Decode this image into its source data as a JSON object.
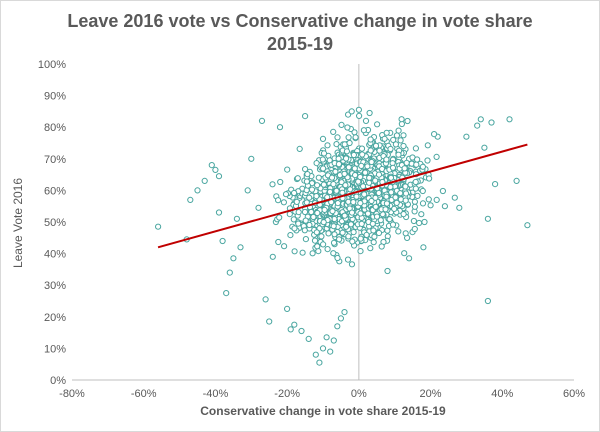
{
  "chart_data": {
    "type": "scatter",
    "title_line1": "Leave 2016 vote vs Conservative change in vote share",
    "title_line2": "2015-19",
    "xlabel": "Conservative change in vote share 2015-19",
    "ylabel": "Leave  Vote 2016",
    "xlim": [
      -0.8,
      0.6
    ],
    "ylim": [
      0,
      1.0
    ],
    "x_ticks": [
      -0.8,
      -0.6,
      -0.4,
      -0.2,
      0,
      0.2,
      0.4,
      0.6
    ],
    "x_tick_labels": [
      "-80%",
      "-60%",
      "-40%",
      "-20%",
      "0%",
      "20%",
      "40%",
      "60%"
    ],
    "y_ticks": [
      0,
      0.1,
      0.2,
      0.3,
      0.4,
      0.5,
      0.6,
      0.7,
      0.8,
      0.9,
      1.0
    ],
    "y_tick_labels": [
      "0%",
      "10%",
      "20%",
      "30%",
      "40%",
      "50%",
      "60%",
      "70%",
      "80%",
      "90%",
      "100%"
    ],
    "grid": false,
    "trendline": {
      "x": [
        -0.56,
        0.47
      ],
      "y": [
        0.42,
        0.745
      ]
    },
    "marker_color": "#4aa6a0",
    "trend_color": "#c00000",
    "points": [
      [
        -0.56,
        0.485
      ],
      [
        -0.48,
        0.445
      ],
      [
        -0.47,
        0.57
      ],
      [
        -0.45,
        0.6
      ],
      [
        -0.43,
        0.63
      ],
      [
        -0.41,
        0.68
      ],
      [
        -0.4,
        0.665
      ],
      [
        -0.39,
        0.645
      ],
      [
        -0.39,
        0.53
      ],
      [
        -0.38,
        0.44
      ],
      [
        -0.37,
        0.275
      ],
      [
        -0.36,
        0.34
      ],
      [
        -0.35,
        0.385
      ],
      [
        -0.34,
        0.51
      ],
      [
        -0.33,
        0.42
      ],
      [
        -0.31,
        0.6
      ],
      [
        -0.3,
        0.7
      ],
      [
        -0.28,
        0.545
      ],
      [
        -0.27,
        0.82
      ],
      [
        -0.26,
        0.255
      ],
      [
        -0.25,
        0.185
      ],
      [
        -0.24,
        0.39
      ],
      [
        -0.22,
        0.8
      ],
      [
        -0.2,
        0.225
      ],
      [
        -0.19,
        0.16
      ],
      [
        -0.18,
        0.175
      ],
      [
        -0.16,
        0.155
      ],
      [
        -0.15,
        0.835
      ],
      [
        -0.14,
        0.13
      ],
      [
        -0.12,
        0.08
      ],
      [
        -0.11,
        0.055
      ],
      [
        -0.1,
        0.1
      ],
      [
        -0.09,
        0.135
      ],
      [
        -0.08,
        0.09
      ],
      [
        -0.07,
        0.125
      ],
      [
        -0.06,
        0.17
      ],
      [
        -0.05,
        0.195
      ],
      [
        -0.04,
        0.215
      ],
      [
        -0.03,
        0.84
      ],
      [
        -0.02,
        0.85
      ],
      [
        0.0,
        0.855
      ],
      [
        0.02,
        0.82
      ],
      [
        0.03,
        0.845
      ],
      [
        0.08,
        0.345
      ],
      [
        0.12,
        0.81
      ],
      [
        0.14,
        0.385
      ],
      [
        0.18,
        0.42
      ],
      [
        0.22,
        0.77
      ],
      [
        0.24,
        0.55
      ],
      [
        0.28,
        0.545
      ],
      [
        0.3,
        0.77
      ],
      [
        0.33,
        0.805
      ],
      [
        0.34,
        0.825
      ],
      [
        0.35,
        0.735
      ],
      [
        0.36,
        0.51
      ],
      [
        0.36,
        0.25
      ],
      [
        0.37,
        0.815
      ],
      [
        0.38,
        0.62
      ],
      [
        0.42,
        0.825
      ],
      [
        0.44,
        0.63
      ],
      [
        0.47,
        0.49
      ]
    ]
  }
}
